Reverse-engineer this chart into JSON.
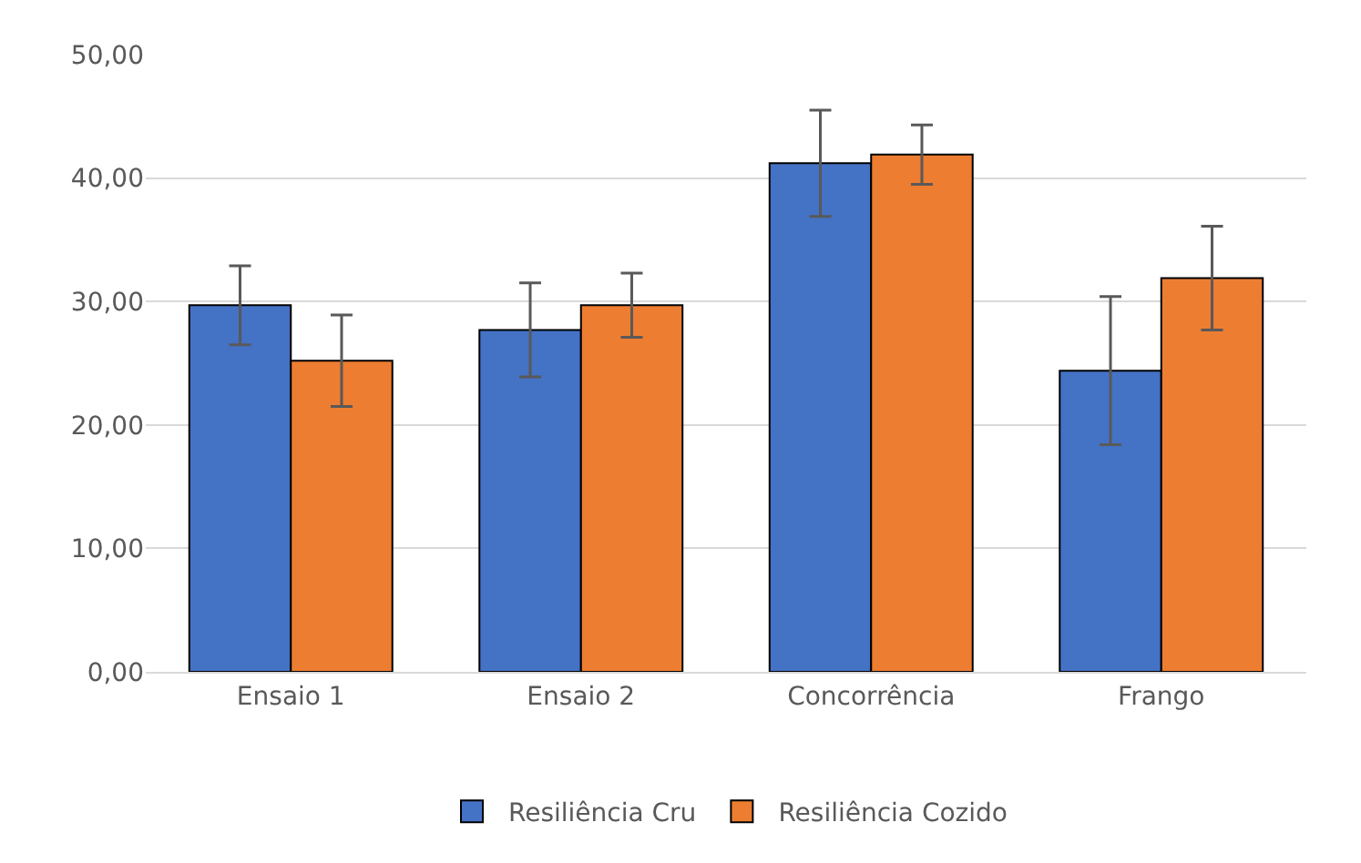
{
  "chart_data": {
    "type": "bar",
    "categories": [
      "Ensaio 1",
      "Ensaio 2",
      "Concorrência",
      "Frango"
    ],
    "series": [
      {
        "name": "Resiliência Cru",
        "color": "#4472c4",
        "values": [
          29.7,
          27.7,
          41.2,
          24.4
        ],
        "errors": [
          3.2,
          3.8,
          4.3,
          6.0
        ]
      },
      {
        "name": "Resiliência Cozido",
        "color": "#ed7d31",
        "values": [
          25.2,
          29.7,
          41.9,
          31.9
        ],
        "errors": [
          3.7,
          2.6,
          2.4,
          4.2
        ]
      }
    ],
    "ylim": [
      0,
      50
    ],
    "yticks": [
      {
        "value": 0,
        "label": "0,00"
      },
      {
        "value": 10,
        "label": "10,00"
      },
      {
        "value": 20,
        "label": "20,00"
      },
      {
        "value": 30,
        "label": "30,00"
      },
      {
        "value": 40,
        "label": "40,00"
      },
      {
        "value": 50,
        "label": "50,00"
      }
    ],
    "grid": "y",
    "legend": "bottom"
  }
}
